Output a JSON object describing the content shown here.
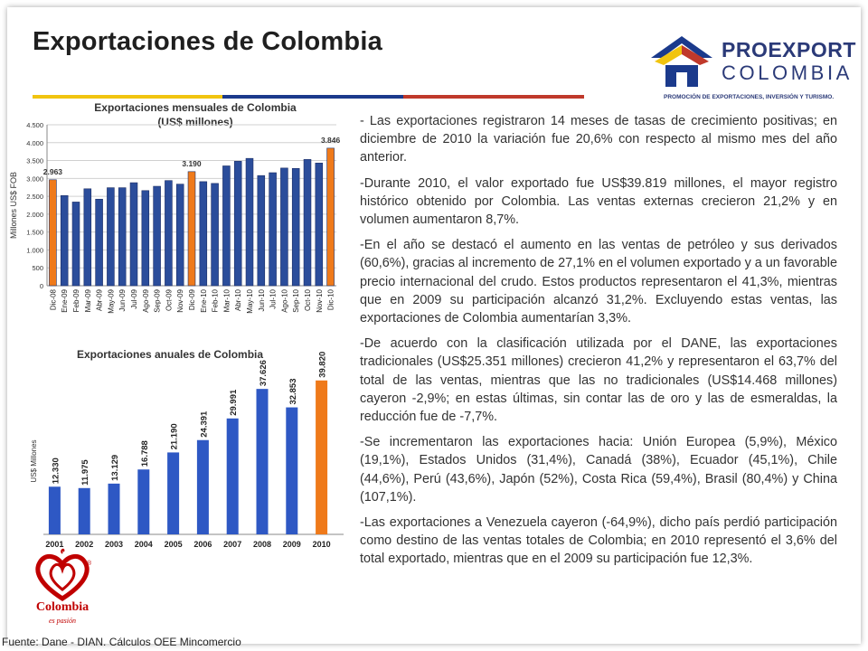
{
  "page": {
    "title": "Exportaciones de Colombia",
    "source": "Fuente: Dane - DIAN. Cálculos OEE Mincomercio"
  },
  "logo": {
    "name": "PROEXPORT",
    "country": "COLOMBIA",
    "tagline": "PROMOCIÓN DE EXPORTACIONES, INVERSIÓN Y TURISMO."
  },
  "country_logo": {
    "word": "Colombia",
    "motto": "es pasión",
    "mark": "®"
  },
  "colors": {
    "bar": "#2e58c4",
    "highlight": "#ef7a1a",
    "stripe_yellow": "#f1c40f",
    "stripe_blue": "#1b3a8c",
    "stripe_red": "#c0392b"
  },
  "chart_data": [
    {
      "type": "bar",
      "title": "Exportaciones mensuales de Colombia",
      "subtitle": "(US$ millones)",
      "ylabel": "Millones US$ FOB",
      "xlabel": "",
      "ylim": [
        0,
        4500
      ],
      "yticks": [
        0,
        500,
        1000,
        1500,
        2000,
        2500,
        3000,
        3500,
        4000,
        4500
      ],
      "ytick_labels": [
        "0",
        "500",
        "1.000",
        "1.500",
        "2.000",
        "2.500",
        "3.000",
        "3.500",
        "4.000",
        "4.500"
      ],
      "grid": true,
      "categories": [
        "Dic-08",
        "Ene-09",
        "Feb-09",
        "Mar-09",
        "Abr-09",
        "May-09",
        "Jun-09",
        "Jul-09",
        "Ago-09",
        "Sep-09",
        "Oct-09",
        "Nov-09",
        "Dic-09",
        "Ene-10",
        "Feb-10",
        "Mar-10",
        "Abr-10",
        "May-10",
        "Jun-10",
        "Jul-10",
        "Ago-10",
        "Sep-10",
        "Oct-10",
        "Nov-10",
        "Dic-10"
      ],
      "values": [
        2963,
        2520,
        2340,
        2710,
        2420,
        2740,
        2740,
        2880,
        2660,
        2780,
        2940,
        2840,
        3190,
        2910,
        2860,
        3350,
        3480,
        3560,
        3080,
        3160,
        3290,
        3280,
        3530,
        3430,
        3846
      ],
      "highlight_indices": [
        0,
        12,
        24
      ],
      "data_labels": [
        {
          "index": 0,
          "text": "2.963"
        },
        {
          "index": 12,
          "text": "3.190"
        },
        {
          "index": 24,
          "text": "3.846"
        }
      ]
    },
    {
      "type": "bar",
      "title": "Exportaciones anuales de Colombia",
      "xlabel": "",
      "ylabel": "US$ Millones",
      "ylim": [
        0,
        40000
      ],
      "grid": false,
      "categories": [
        "2001",
        "2002",
        "2003",
        "2004",
        "2005",
        "2006",
        "2007",
        "2008",
        "2009",
        "2010"
      ],
      "values": [
        12330,
        11975,
        13129,
        16788,
        21190,
        24391,
        29991,
        37626,
        32853,
        39820
      ],
      "value_labels": [
        "12.330",
        "11.975",
        "13.129",
        "16.788",
        "21.190",
        "24.391",
        "29.991",
        "37.626",
        "32.853",
        "39.820"
      ],
      "highlight_indices": [
        9
      ]
    }
  ],
  "text_panel": {
    "paragraphs": [
      "- Las exportaciones registraron 14 meses de tasas de crecimiento positivas; en diciembre de 2010 la variación fue 20,6% con respecto al mismo mes del año anterior.",
      "-Durante 2010, el valor exportado fue US$39.819 millones, el mayor registro histórico obtenido por Colombia. Las ventas externas crecieron 21,2% y en volumen aumentaron 8,7%.",
      "-En el año se destacó el aumento en las ventas de petróleo y sus derivados (60,6%), gracias al incremento de 27,1% en el volumen exportado y a un favorable precio internacional del crudo. Estos productos representaron el 41,3%, mientras que en 2009 su participación alcanzó 31,2%. Excluyendo estas ventas, las exportaciones de Colombia aumentarían 3,3%.",
      "-De acuerdo con la clasificación utilizada por el DANE, las exportaciones tradicionales (US$25.351 millones) crecieron 41,2% y representaron el 63,7% del total de las ventas, mientras que las no tradicionales (US$14.468 millones) cayeron -2,9%; en estas últimas, sin contar las de oro y las de esmeraldas, la reducción fue de -7,7%.",
      "-Se incrementaron las exportaciones hacia: Unión Europea (5,9%), México (19,1%), Estados Unidos (31,4%), Canadá (38%), Ecuador (45,1%), Chile (44,6%), Perú (43,6%), Japón (52%), Costa Rica (59,4%), Brasil (80,4%) y China (107,1%).",
      "-Las exportaciones a Venezuela cayeron (-64,9%), dicho país perdió participación como destino de las ventas totales de Colombia; en 2010 representó el 3,6% del total exportado, mientras que en el 2009 su participación fue 12,3%."
    ]
  }
}
